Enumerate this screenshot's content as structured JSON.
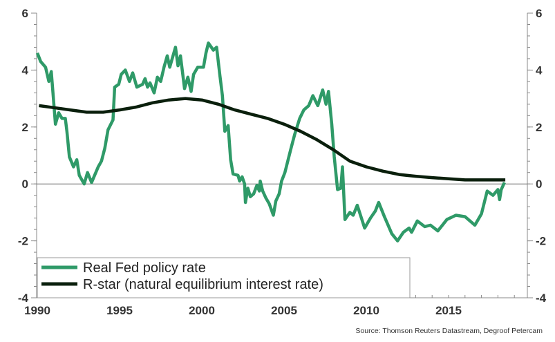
{
  "chart_data": {
    "type": "line",
    "title": "",
    "xlabel": "",
    "ylabel": "",
    "xlim": [
      1990,
      2019.6
    ],
    "ylim": [
      -4,
      6
    ],
    "x_ticks": [
      "1990",
      "1995",
      "2000",
      "2005",
      "2010",
      "2015"
    ],
    "x_tick_values": [
      1990,
      1995,
      2000,
      2005,
      2010,
      2015
    ],
    "y_ticks": [
      6,
      4,
      2,
      0,
      -2,
      -4
    ],
    "y_tick_labels": [
      "6",
      "4",
      "2",
      "0",
      "-2",
      "-4"
    ],
    "secondary_y_axis": true,
    "grid": false,
    "zero_line": true,
    "legend_position": "bottom-left",
    "source": "Source: Thomson Reuters Datastream, Degroof Petercam",
    "series": [
      {
        "name": "Real Fed policy rate",
        "color": "#2f9a68",
        "x": [
          1990.0,
          1990.2,
          1990.5,
          1990.7,
          1990.85,
          1991.1,
          1991.3,
          1991.5,
          1991.7,
          1991.8,
          1991.95,
          1992.2,
          1992.4,
          1992.55,
          1992.85,
          1993.05,
          1993.3,
          1993.7,
          1993.9,
          1994.1,
          1994.3,
          1994.6,
          1994.7,
          1994.95,
          1995.1,
          1995.35,
          1995.6,
          1995.8,
          1996.05,
          1996.4,
          1996.55,
          1996.7,
          1996.85,
          1997.1,
          1997.3,
          1997.5,
          1997.7,
          1997.9,
          1998.05,
          1998.4,
          1998.55,
          1998.7,
          1998.95,
          1999.15,
          1999.35,
          1999.5,
          1999.75,
          2000.1,
          2000.25,
          2000.4,
          2000.7,
          2000.9,
          2001.1,
          2001.25,
          2001.4,
          2001.6,
          2001.75,
          2001.9,
          2002.2,
          2002.3,
          2002.45,
          2002.6,
          2002.65,
          2002.8,
          2002.95,
          2003.15,
          2003.35,
          2003.5,
          2003.55,
          2003.7,
          2003.9,
          2004.1,
          2004.35,
          2004.5,
          2004.7,
          2004.85,
          2005.05,
          2005.4,
          2005.65,
          2005.95,
          2006.2,
          2006.5,
          2006.75,
          2007.05,
          2007.35,
          2007.55,
          2007.7,
          2007.9,
          2008.05,
          2008.25,
          2008.45,
          2008.55,
          2008.7,
          2009.0,
          2009.2,
          2009.45,
          2009.9,
          2010.25,
          2010.55,
          2010.75,
          2011.1,
          2011.55,
          2011.9,
          2012.25,
          2012.6,
          2012.75,
          2013.1,
          2013.55,
          2013.9,
          2014.35,
          2014.9,
          2015.45,
          2016.0,
          2016.6,
          2017.0,
          2017.35,
          2017.7,
          2018.0,
          2018.1,
          2018.2,
          2018.4
        ],
        "values": [
          4.6,
          4.3,
          4.1,
          3.6,
          3.95,
          2.1,
          2.5,
          2.3,
          2.3,
          1.85,
          0.95,
          0.6,
          0.85,
          0.3,
          0.0,
          0.4,
          0.05,
          0.6,
          0.8,
          1.25,
          1.9,
          2.25,
          3.4,
          3.5,
          3.85,
          4.0,
          3.6,
          3.9,
          3.4,
          3.5,
          3.7,
          3.4,
          3.55,
          3.2,
          3.75,
          3.6,
          4.1,
          4.5,
          4.1,
          4.8,
          4.15,
          4.5,
          3.35,
          3.75,
          3.25,
          3.85,
          4.1,
          4.1,
          4.6,
          4.95,
          4.7,
          4.8,
          3.8,
          3.1,
          1.85,
          2.05,
          0.85,
          0.35,
          0.3,
          0.1,
          0.25,
          0.0,
          -0.65,
          -0.15,
          -0.45,
          -0.35,
          -0.05,
          -0.25,
          0.1,
          -0.25,
          -0.5,
          -0.7,
          -1.1,
          -0.6,
          -0.35,
          0.1,
          0.4,
          1.2,
          1.75,
          2.3,
          2.6,
          2.75,
          3.1,
          2.75,
          3.3,
          2.8,
          3.25,
          2.1,
          0.95,
          -0.2,
          -0.15,
          0.6,
          -1.25,
          -1.0,
          -1.1,
          -0.75,
          -1.55,
          -1.2,
          -0.95,
          -0.65,
          -1.15,
          -1.75,
          -2.0,
          -1.7,
          -1.55,
          -1.7,
          -1.3,
          -1.5,
          -1.45,
          -1.65,
          -1.25,
          -1.1,
          -1.15,
          -1.45,
          -1.05,
          -0.25,
          -0.4,
          -0.2,
          -0.55,
          -0.2,
          0.05
        ]
      },
      {
        "name": "R-star (natural equilibrium interest rate)",
        "color": "#0a1f0c",
        "x": [
          1990.1,
          1991,
          1992,
          1993,
          1994,
          1995,
          1996,
          1997,
          1998,
          1999,
          2000,
          2001,
          2002,
          2003,
          2004,
          2005,
          2006,
          2007,
          2008,
          2009,
          2010,
          2011,
          2012,
          2013,
          2014,
          2015,
          2016,
          2017,
          2018.45
        ],
        "values": [
          2.75,
          2.68,
          2.6,
          2.52,
          2.52,
          2.6,
          2.7,
          2.85,
          2.95,
          3.0,
          2.95,
          2.8,
          2.6,
          2.45,
          2.3,
          2.1,
          1.85,
          1.55,
          1.2,
          0.8,
          0.6,
          0.45,
          0.33,
          0.27,
          0.22,
          0.18,
          0.14,
          0.14,
          0.14
        ]
      }
    ]
  }
}
